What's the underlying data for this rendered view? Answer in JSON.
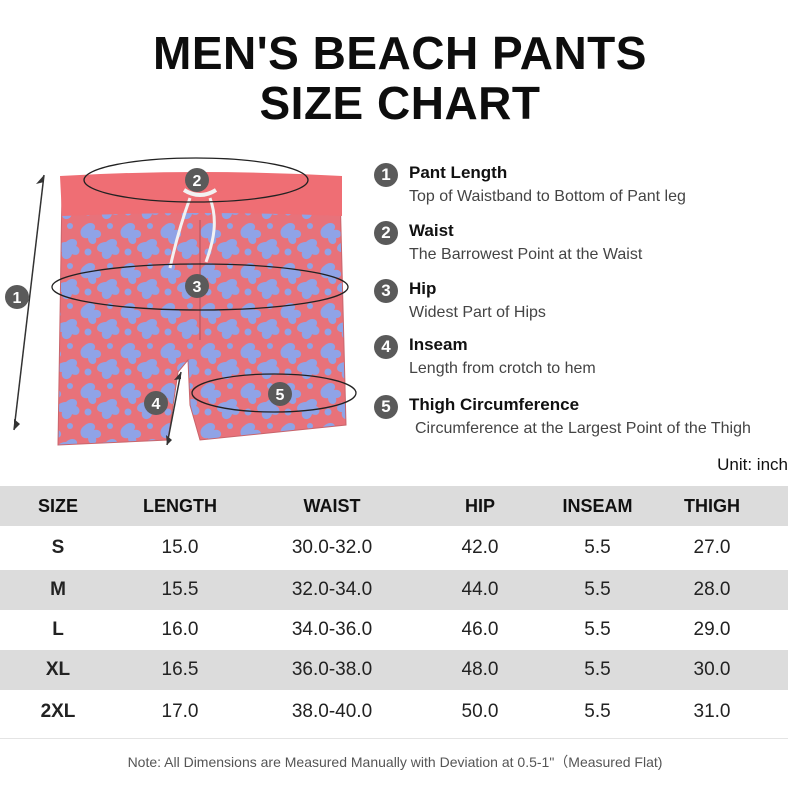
{
  "title": {
    "line1": "MEN'S BEACH PANTS",
    "line2": "SIZE CHART"
  },
  "illustration": {
    "markers": [
      "1",
      "2",
      "3",
      "4",
      "5"
    ],
    "colors": {
      "fabric_red": "#e8727a",
      "fabric_blue": "#8fa3e6",
      "waistband": "#ef6e74",
      "marker": "#5a5a5a"
    }
  },
  "legend": [
    {
      "num": "1",
      "title": "Pant Length",
      "desc": "Top of Waistband to Bottom of Pant leg"
    },
    {
      "num": "2",
      "title": "Waist",
      "desc": "The Barrowest Point at the Waist"
    },
    {
      "num": "3",
      "title": "Hip",
      "desc": "Widest Part of Hips"
    },
    {
      "num": "4",
      "title": "Inseam",
      "desc": "Length from crotch to hem"
    },
    {
      "num": "5",
      "title": "Thigh Circumference",
      "desc": "Circumference at the Largest Point of the Thigh"
    }
  ],
  "unit": "Unit: inch",
  "table": {
    "headers": [
      "SIZE",
      "LENGTH",
      "WAIST",
      "HIP",
      "INSEAM",
      "THIGH"
    ],
    "rows": [
      [
        "S",
        "15.0",
        "30.0-32.0",
        "42.0",
        "5.5",
        "27.0"
      ],
      [
        "M",
        "15.5",
        "32.0-34.0",
        "44.0",
        "5.5",
        "28.0"
      ],
      [
        "L",
        "16.0",
        "34.0-36.0",
        "46.0",
        "5.5",
        "29.0"
      ],
      [
        "XL",
        "16.5",
        "36.0-38.0",
        "48.0",
        "5.5",
        "30.0"
      ],
      [
        "2XL",
        "17.0",
        "38.0-40.0",
        "50.0",
        "5.5",
        "31.0"
      ]
    ]
  },
  "note": "Note: All Dimensions are Measured Manually with Deviation at 0.5-1\"（Measured Flat)"
}
